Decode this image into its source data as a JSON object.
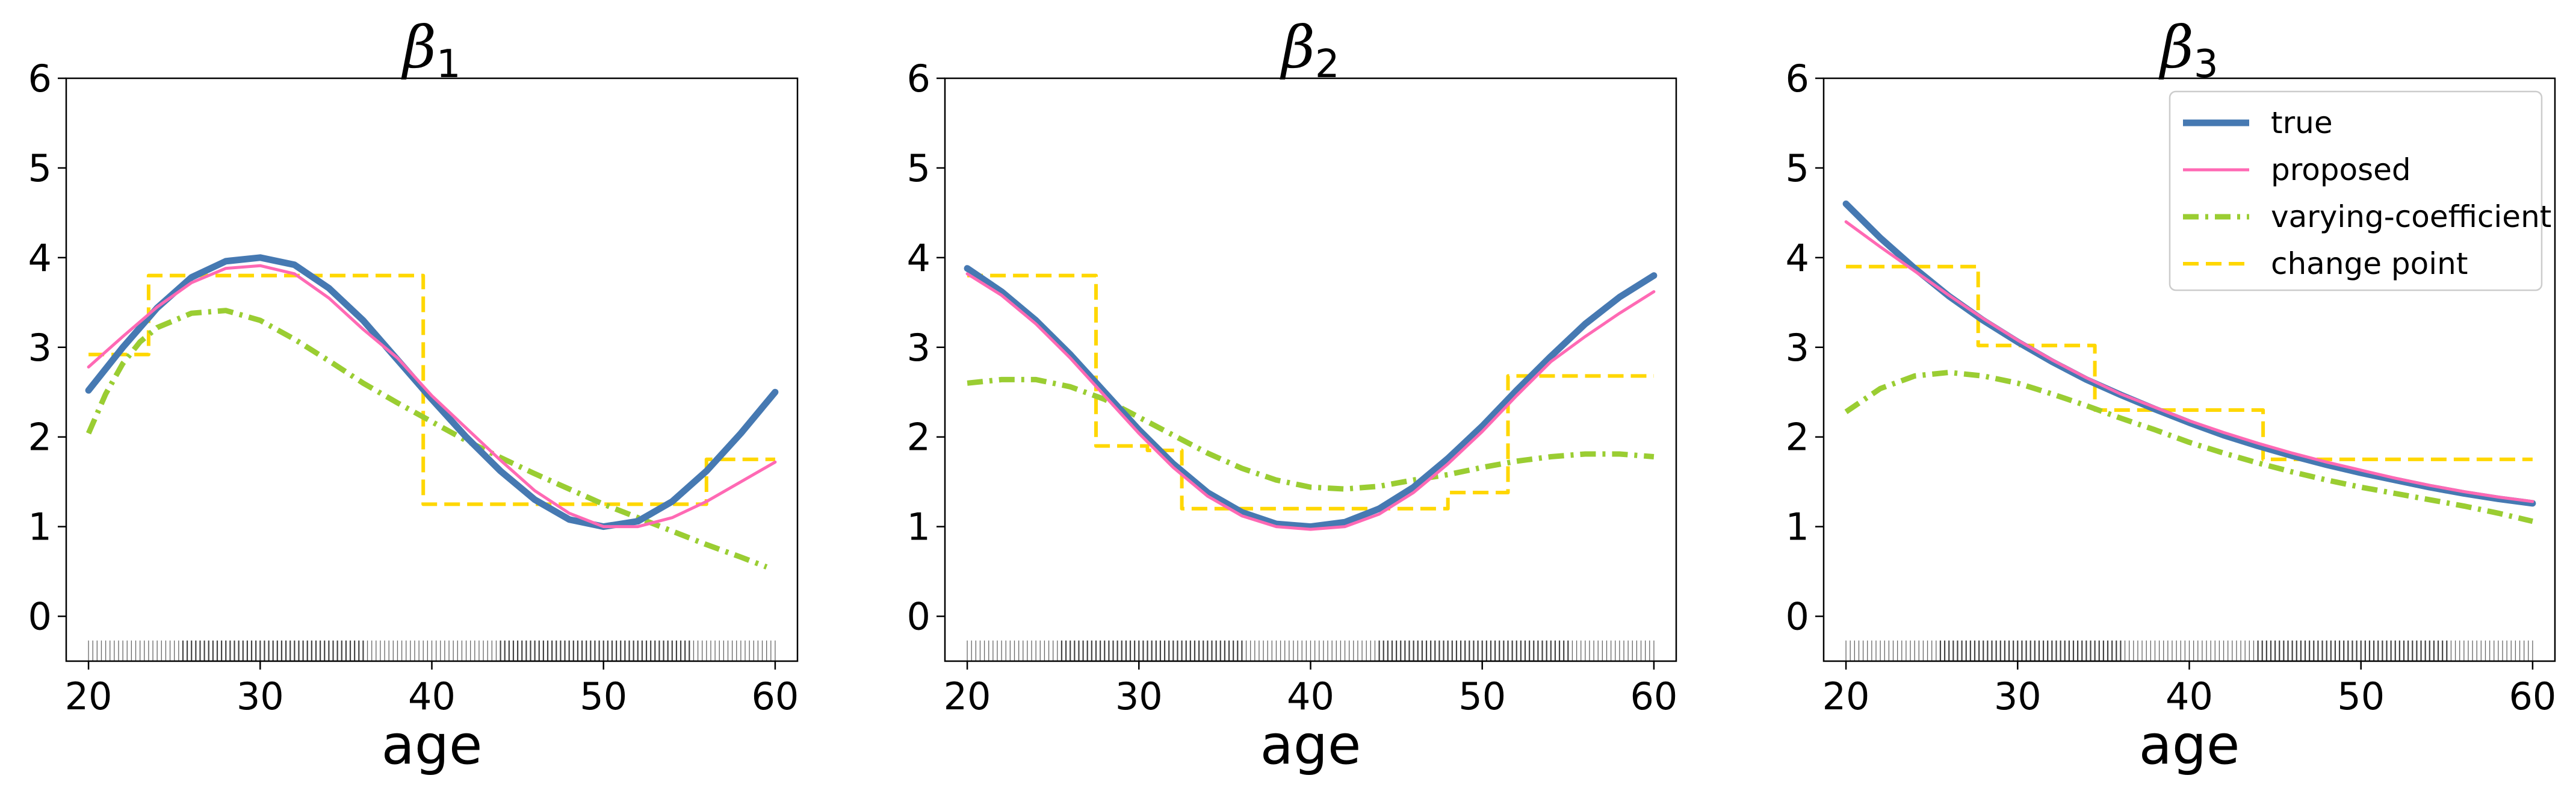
{
  "chart_data": [
    {
      "type": "line",
      "title": "β",
      "title_subscript": "1",
      "xlabel": "age",
      "ylabel": "",
      "xlim": [
        18.7,
        61.3
      ],
      "ylim": [
        -0.5,
        6
      ],
      "xticks": [
        20,
        30,
        40,
        50,
        60
      ],
      "yticks": [
        0,
        1,
        2,
        3,
        4,
        5,
        6
      ],
      "rug_y": -0.27,
      "series": [
        {
          "name": "true",
          "color": "#4679b2",
          "dash": "",
          "width": 11,
          "x": [
            20,
            22,
            24,
            26,
            28,
            30,
            32,
            34,
            36,
            38,
            40,
            42,
            44,
            46,
            48,
            50,
            52,
            54,
            56,
            58,
            60
          ],
          "y": [
            2.52,
            3.0,
            3.44,
            3.78,
            3.96,
            4.0,
            3.92,
            3.66,
            3.3,
            2.86,
            2.42,
            2.0,
            1.62,
            1.3,
            1.08,
            1.0,
            1.06,
            1.28,
            1.62,
            2.04,
            2.5
          ]
        },
        {
          "name": "proposed",
          "color": "#ff69b4",
          "dash": "",
          "width": 5,
          "x": [
            20,
            22,
            24,
            26,
            28,
            30,
            32,
            34,
            36,
            38,
            40,
            42,
            44,
            46,
            48,
            50,
            52,
            54,
            56,
            58,
            60
          ],
          "y": [
            2.78,
            3.12,
            3.45,
            3.72,
            3.88,
            3.91,
            3.82,
            3.55,
            3.2,
            2.88,
            2.46,
            2.1,
            1.74,
            1.4,
            1.15,
            1.0,
            1.0,
            1.1,
            1.28,
            1.5,
            1.72
          ]
        },
        {
          "name": "varying-coefficient",
          "color": "#9acd32",
          "dash": "26,11,5,11",
          "width": 9,
          "x": [
            20,
            21,
            22,
            23,
            24,
            26,
            28,
            30,
            32,
            34,
            36,
            38,
            40,
            42,
            44,
            46,
            48,
            50,
            52,
            54,
            56,
            58,
            59.5
          ],
          "y": [
            2.04,
            2.48,
            2.82,
            3.06,
            3.22,
            3.38,
            3.41,
            3.3,
            3.09,
            2.85,
            2.6,
            2.38,
            2.17,
            1.96,
            1.77,
            1.59,
            1.42,
            1.25,
            1.1,
            0.95,
            0.8,
            0.66,
            0.55
          ]
        },
        {
          "name": "change point",
          "color": "#ffd700",
          "dash": "26,12",
          "width": 6,
          "x": [
            20,
            23.5,
            23.5,
            39.5,
            39.5,
            56,
            56,
            60
          ],
          "y": [
            2.92,
            2.92,
            3.8,
            3.8,
            1.25,
            1.25,
            1.75,
            1.75
          ]
        }
      ],
      "legend": null
    },
    {
      "type": "line",
      "title": "β",
      "title_subscript": "2",
      "xlabel": "age",
      "ylabel": "",
      "xlim": [
        18.7,
        61.3
      ],
      "ylim": [
        -0.5,
        6
      ],
      "xticks": [
        20,
        30,
        40,
        50,
        60
      ],
      "yticks": [
        0,
        1,
        2,
        3,
        4,
        5,
        6
      ],
      "rug_y": -0.27,
      "series": [
        {
          "name": "true",
          "color": "#4679b2",
          "dash": "",
          "width": 11,
          "x": [
            20,
            22,
            24,
            26,
            28,
            30,
            32,
            34,
            36,
            38,
            40,
            42,
            44,
            46,
            48,
            50,
            52,
            54,
            56,
            58,
            60
          ],
          "y": [
            3.88,
            3.62,
            3.3,
            2.92,
            2.5,
            2.08,
            1.7,
            1.38,
            1.16,
            1.03,
            1.0,
            1.05,
            1.2,
            1.44,
            1.76,
            2.12,
            2.52,
            2.9,
            3.26,
            3.56,
            3.8
          ]
        },
        {
          "name": "proposed",
          "color": "#ff69b4",
          "dash": "",
          "width": 5,
          "x": [
            20,
            22,
            24,
            26,
            28,
            30,
            32,
            34,
            36,
            38,
            40,
            42,
            44,
            46,
            48,
            50,
            52,
            54,
            56,
            58,
            60
          ],
          "y": [
            3.82,
            3.58,
            3.26,
            2.88,
            2.46,
            2.04,
            1.66,
            1.34,
            1.12,
            1.0,
            0.97,
            1.0,
            1.14,
            1.38,
            1.7,
            2.06,
            2.46,
            2.84,
            3.12,
            3.38,
            3.62
          ]
        },
        {
          "name": "varying-coefficient",
          "color": "#9acd32",
          "dash": "26,11,5,11",
          "width": 9,
          "x": [
            20,
            22,
            24,
            26,
            28,
            30,
            32,
            34,
            36,
            38,
            40,
            42,
            44,
            46,
            48,
            50,
            52,
            54,
            56,
            58,
            60
          ],
          "y": [
            2.6,
            2.64,
            2.64,
            2.56,
            2.42,
            2.22,
            2.02,
            1.82,
            1.65,
            1.52,
            1.44,
            1.42,
            1.45,
            1.52,
            1.58,
            1.66,
            1.73,
            1.78,
            1.81,
            1.81,
            1.78
          ]
        },
        {
          "name": "change point",
          "color": "#ffd700",
          "dash": "26,12",
          "width": 6,
          "x": [
            20,
            27.5,
            27.5,
            30.5,
            30.5,
            32.5,
            32.5,
            48,
            48,
            51.5,
            51.5,
            60
          ],
          "y": [
            3.8,
            3.8,
            1.9,
            1.9,
            1.85,
            1.85,
            1.2,
            1.2,
            1.38,
            1.38,
            2.68,
            2.68
          ]
        }
      ],
      "legend": null
    },
    {
      "type": "line",
      "title": "β",
      "title_subscript": "3",
      "xlabel": "age",
      "ylabel": "",
      "xlim": [
        18.7,
        61.3
      ],
      "ylim": [
        -0.5,
        6
      ],
      "xticks": [
        20,
        30,
        40,
        50,
        60
      ],
      "yticks": [
        0,
        1,
        2,
        3,
        4,
        5,
        6
      ],
      "rug_y": -0.27,
      "series": [
        {
          "name": "true",
          "color": "#4679b2",
          "dash": "",
          "width": 11,
          "x": [
            20,
            22,
            24,
            26,
            28,
            30,
            32,
            34,
            36,
            38,
            40,
            42,
            44,
            46,
            48,
            50,
            52,
            54,
            56,
            58,
            60
          ],
          "y": [
            4.6,
            4.22,
            3.88,
            3.57,
            3.3,
            3.06,
            2.84,
            2.64,
            2.47,
            2.31,
            2.16,
            2.02,
            1.9,
            1.79,
            1.69,
            1.6,
            1.52,
            1.44,
            1.37,
            1.31,
            1.26
          ]
        },
        {
          "name": "proposed",
          "color": "#ff69b4",
          "dash": "",
          "width": 5,
          "x": [
            20,
            22,
            24,
            26,
            28,
            30,
            32,
            34,
            36,
            38,
            40,
            42,
            44,
            46,
            48,
            50,
            52,
            54,
            56,
            58,
            60
          ],
          "y": [
            4.4,
            4.12,
            3.85,
            3.58,
            3.32,
            3.08,
            2.86,
            2.66,
            2.48,
            2.33,
            2.18,
            2.05,
            1.93,
            1.82,
            1.72,
            1.63,
            1.54,
            1.46,
            1.39,
            1.33,
            1.28
          ]
        },
        {
          "name": "varying-coefficient",
          "color": "#9acd32",
          "dash": "26,11,5,11",
          "width": 9,
          "x": [
            20,
            22,
            24,
            26,
            28,
            30,
            32,
            34,
            36,
            38,
            40,
            42,
            44,
            46,
            48,
            50,
            52,
            54,
            56,
            58,
            60
          ],
          "y": [
            2.28,
            2.54,
            2.68,
            2.72,
            2.68,
            2.6,
            2.48,
            2.35,
            2.21,
            2.08,
            1.94,
            1.82,
            1.71,
            1.61,
            1.52,
            1.44,
            1.37,
            1.3,
            1.23,
            1.15,
            1.06
          ]
        },
        {
          "name": "change point",
          "color": "#ffd700",
          "dash": "26,12",
          "width": 6,
          "x": [
            20,
            27.7,
            27.7,
            34.5,
            34.5,
            44.3,
            44.3,
            60
          ],
          "y": [
            3.9,
            3.9,
            3.02,
            3.02,
            2.3,
            2.3,
            1.75,
            1.75
          ]
        }
      ],
      "legend": {
        "position": "upper right",
        "entries": [
          "true",
          "proposed",
          "varying-coefficient",
          "change point"
        ]
      }
    }
  ]
}
